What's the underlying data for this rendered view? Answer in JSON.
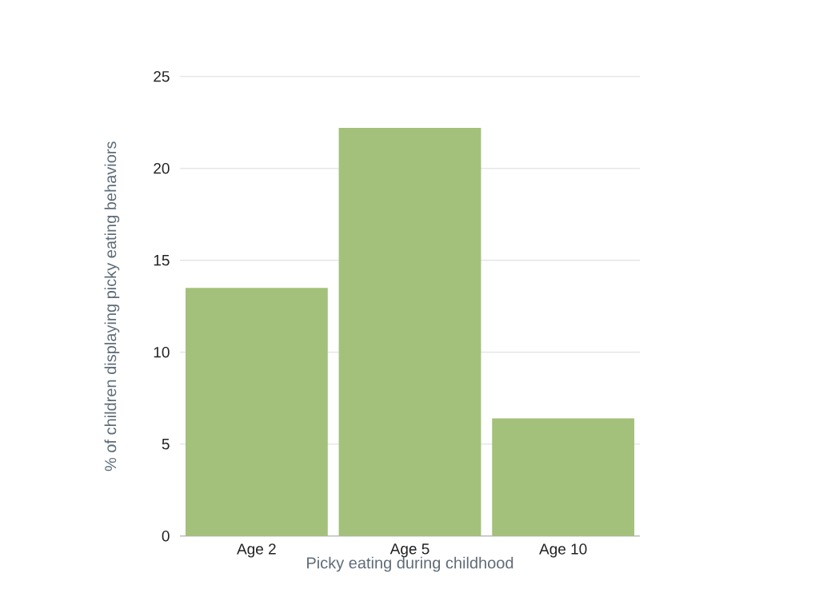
{
  "chart_data": {
    "type": "bar",
    "xlabel": "Picky eating during childhood",
    "ylabel": "% of children displaying picky eating behaviors",
    "categories": [
      "Age 2",
      "Age 5",
      "Age 10"
    ],
    "values": [
      13.5,
      22.2,
      6.4
    ],
    "color": "#a3c17a",
    "ylim": [
      0,
      25
    ],
    "yticks": [
      0,
      5,
      10,
      15,
      20,
      25
    ],
    "grid": "y"
  }
}
